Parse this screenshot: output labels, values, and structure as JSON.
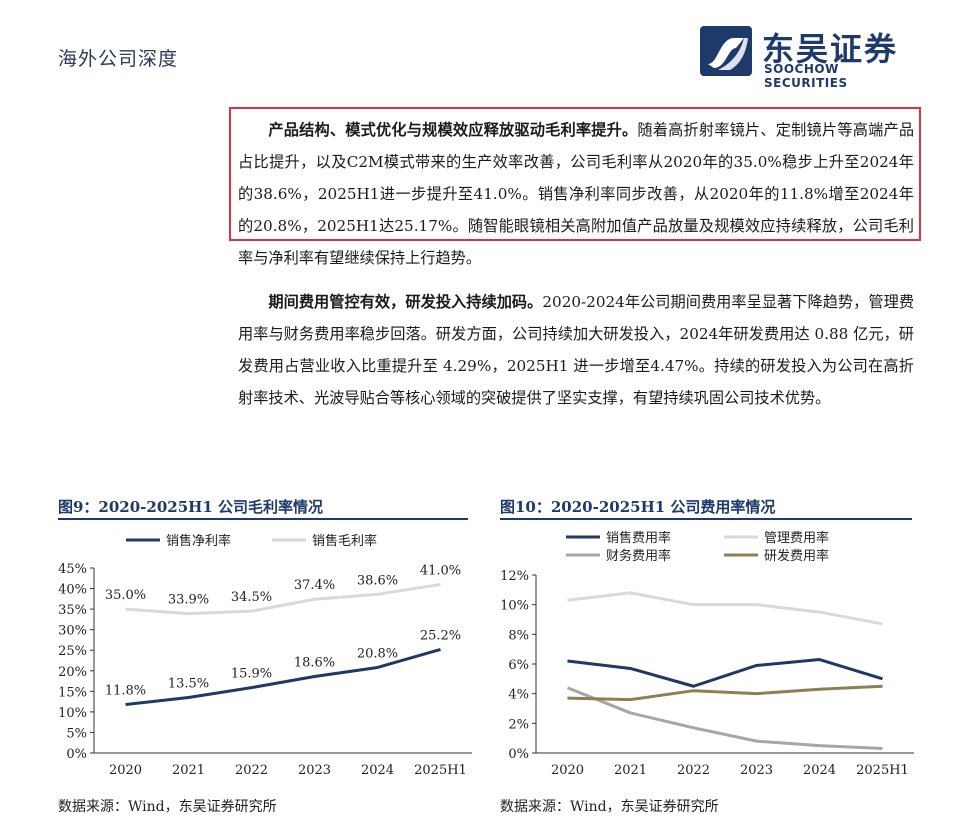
{
  "header": {
    "section": "海外公司深度",
    "logo_cn": "东吴证券",
    "logo_en": "SOOCHOW SECURITIES"
  },
  "paragraphs": [
    {
      "bold": "产品结构、模式优化与规模效应释放驱动毛利率提升。",
      "text": "随着高折射率镜片、定制镜片等高端产品占比提升，以及C2M模式带来的生产效率改善，公司毛利率从2020年的35.0%稳步上升至2024年的38.6%，2025H1进一步提升至41.0%。销售净利率同步改善，从2020年的11.8%增至2024年的20.8%，2025H1达25.17%。随智能眼镜相关高附加值产品放量及规模效应持续释放，公司毛利率与净利率有望继续保持上行趋势。"
    },
    {
      "bold": "期间费用管控有效，研发投入持续加码。",
      "text": "2020-2024年公司期间费用率呈显著下降趋势，管理费用率与财务费用率稳步回落。研发方面，公司持续加大研发投入，2024年研发费用达 0.88 亿元，研发费用占营业收入比重提升至 4.29%，2025H1 进一步增至4.47%。持续的研发投入为公司在高折射率技术、光波导贴合等核心领域的突破提供了坚实支撑，有望持续巩固公司技术优势。"
    }
  ],
  "figures": [
    {
      "title": "图9：2020-2025H1 公司毛利率情况",
      "source": "数据来源：Wind，东吴证券研究所"
    },
    {
      "title": "图10：2020-2025H1 公司费用率情况",
      "source": "数据来源：Wind，东吴证券研究所"
    }
  ],
  "chart_data": [
    {
      "type": "line",
      "categories": [
        "2020",
        "2021",
        "2022",
        "2023",
        "2024",
        "2025H1"
      ],
      "series": [
        {
          "name": "销售净利率",
          "values": [
            11.8,
            13.5,
            15.9,
            18.6,
            20.8,
            25.2
          ],
          "labels": [
            "11.8%",
            "13.5%",
            "15.9%",
            "18.6%",
            "20.8%",
            "25.2%"
          ],
          "color": "#1f3864"
        },
        {
          "name": "销售毛利率",
          "values": [
            35.0,
            33.9,
            34.5,
            37.4,
            38.6,
            41.0
          ],
          "labels": [
            "35.0%",
            "33.9%",
            "34.5%",
            "37.4%",
            "38.6%",
            "41.0%"
          ],
          "color": "#d9d9d9"
        }
      ],
      "ylim": [
        0,
        45
      ],
      "yticks": [
        "0%",
        "5%",
        "10%",
        "15%",
        "20%",
        "25%",
        "30%",
        "35%",
        "40%",
        "45%"
      ],
      "legend": "top"
    },
    {
      "type": "line",
      "categories": [
        "2020",
        "2021",
        "2022",
        "2023",
        "2024",
        "2025H1"
      ],
      "series": [
        {
          "name": "销售费用率",
          "values": [
            6.2,
            5.7,
            4.5,
            5.9,
            6.3,
            5.0
          ],
          "color": "#1f3864"
        },
        {
          "name": "管理费用率",
          "values": [
            10.3,
            10.8,
            10.0,
            10.0,
            9.5,
            8.7
          ],
          "color": "#d9d9d9"
        },
        {
          "name": "财务费用率",
          "values": [
            4.4,
            2.7,
            1.7,
            0.8,
            0.5,
            0.3
          ],
          "color": "#a6a6a6"
        },
        {
          "name": "研发费用率",
          "values": [
            3.7,
            3.6,
            4.2,
            4.0,
            4.3,
            4.5
          ],
          "color": "#8c8153"
        }
      ],
      "ylim": [
        0,
        12
      ],
      "yticks": [
        "0%",
        "2%",
        "4%",
        "6%",
        "8%",
        "10%",
        "12%"
      ],
      "legend": "top"
    }
  ]
}
